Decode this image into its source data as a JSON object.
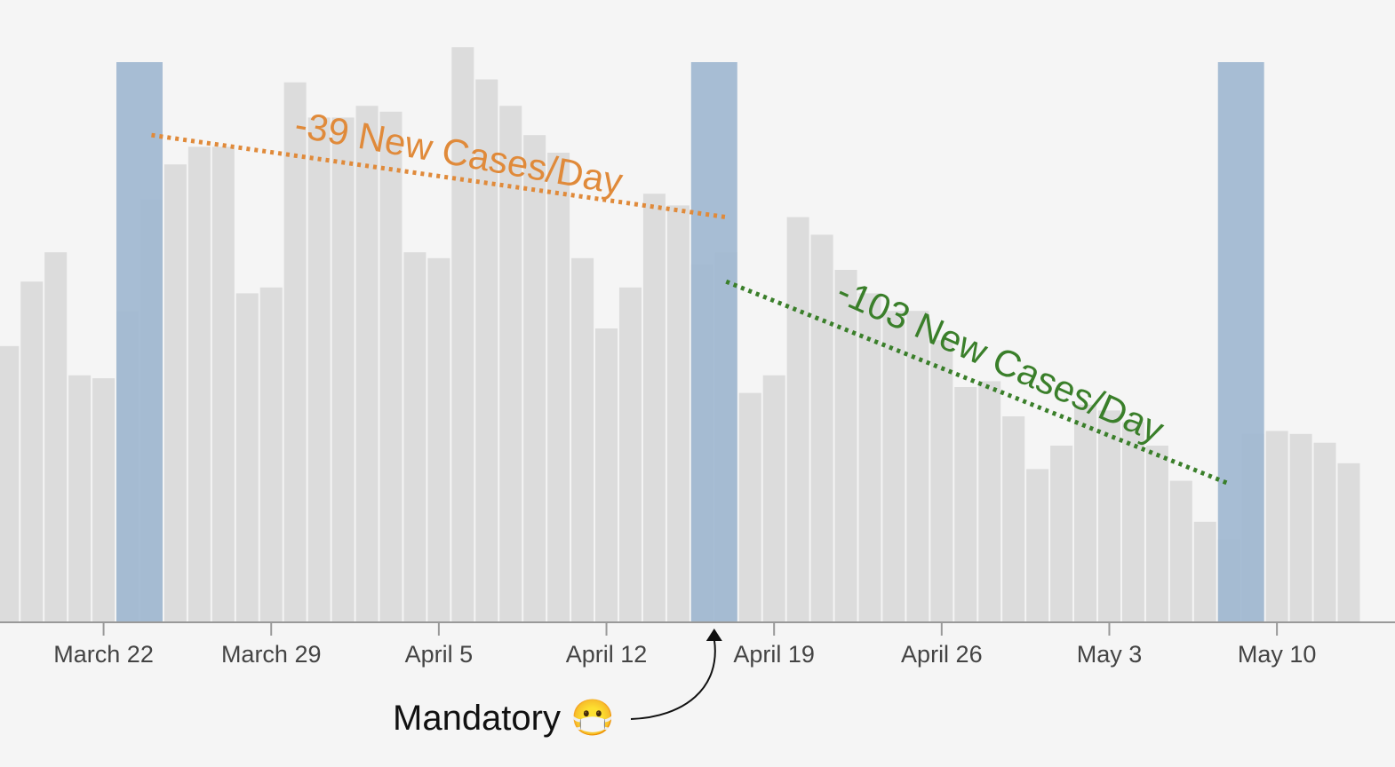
{
  "chart_data": {
    "type": "bar",
    "title": "",
    "xlabel": "",
    "ylabel": "",
    "ylim": [
      0,
      1000
    ],
    "grid": false,
    "x_start": "2020-03-18",
    "x_end": "2020-05-14",
    "values": [
      470,
      580,
      630,
      420,
      415,
      530,
      720,
      780,
      810,
      810,
      560,
      570,
      920,
      860,
      860,
      880,
      870,
      630,
      620,
      980,
      925,
      880,
      830,
      800,
      620,
      500,
      570,
      730,
      710,
      610,
      630,
      390,
      420,
      690,
      660,
      600,
      560,
      530,
      530,
      480,
      400,
      410,
      350,
      260,
      300,
      370,
      360,
      340,
      300,
      240,
      170,
      140,
      320,
      325,
      320,
      305,
      270
    ],
    "highlights": [
      {
        "start": "2020-03-23",
        "end": "2020-03-24"
      },
      {
        "start": "2020-04-16",
        "end": "2020-04-17"
      },
      {
        "start": "2020-05-08",
        "end": "2020-05-09"
      }
    ],
    "ticks": [
      {
        "date": "2020-03-22",
        "label": "March 22"
      },
      {
        "date": "2020-03-29",
        "label": "March 29"
      },
      {
        "date": "2020-04-05",
        "label": "April 5"
      },
      {
        "date": "2020-04-12",
        "label": "April 12"
      },
      {
        "date": "2020-04-19",
        "label": "April 19"
      },
      {
        "date": "2020-04-26",
        "label": "April 26"
      },
      {
        "date": "2020-05-03",
        "label": "May 3"
      },
      {
        "date": "2020-05-10",
        "label": "May 10"
      }
    ],
    "trends": [
      {
        "label": "-39 New Cases/Day",
        "color": "#e08a3a",
        "from": {
          "date": "2020-03-24",
          "value": 830
        },
        "to": {
          "date": "2020-04-17",
          "value": 690
        }
      },
      {
        "label": "-103 New Cases/Day",
        "color": "#3a7f2a",
        "from": {
          "date": "2020-04-17",
          "value": 580
        },
        "to": {
          "date": "2020-05-08",
          "value": 235
        }
      }
    ],
    "annotation": {
      "text": "Mandatory 😷",
      "date": "2020-04-17"
    },
    "colors": {
      "bar": "#dcdcdc",
      "highlight": "#9fb7d0",
      "axis": "#999999",
      "background": "#f5f5f5"
    }
  }
}
